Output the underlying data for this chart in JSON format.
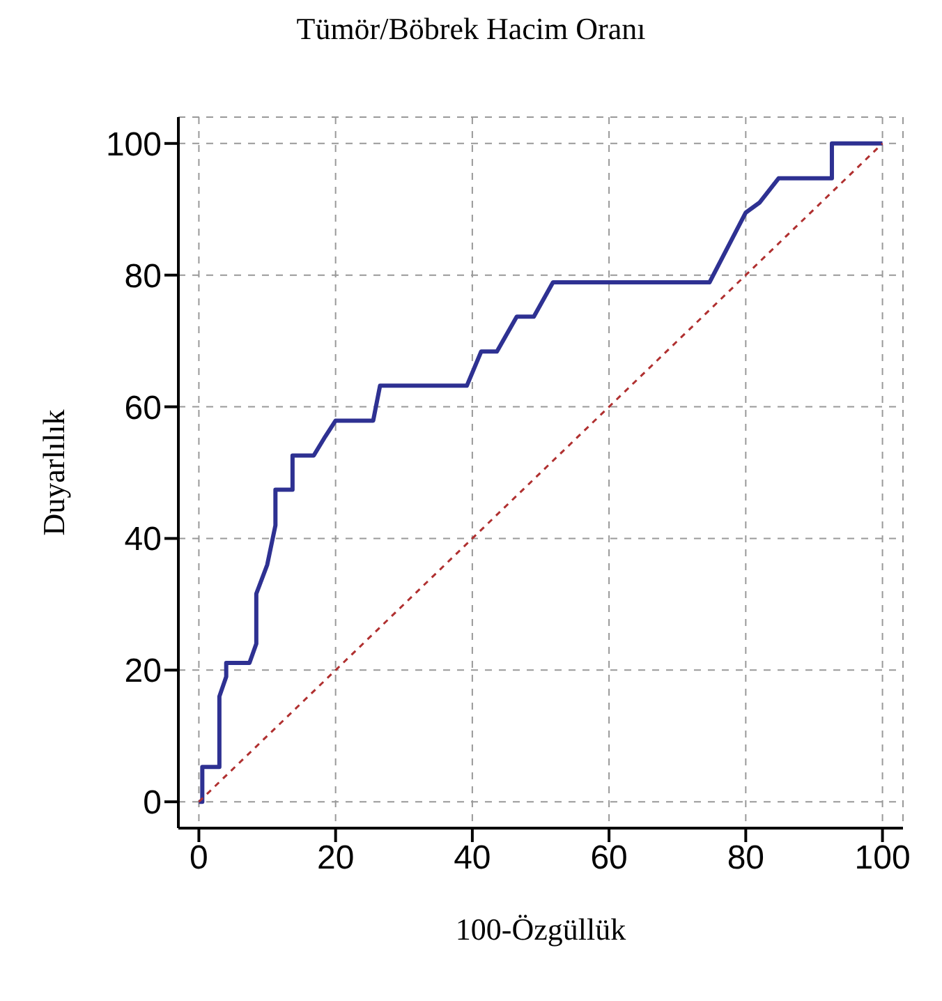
{
  "chart_data": {
    "type": "line",
    "title": "Tümör/Böbrek Hacim Oranı",
    "xlabel": "100-Özgüllük",
    "ylabel": "Duyarlılık",
    "xlim": [
      -3,
      103
    ],
    "ylim": [
      -4,
      104
    ],
    "xticks": [
      0,
      20,
      40,
      60,
      80,
      100
    ],
    "yticks": [
      0,
      20,
      40,
      60,
      80,
      100
    ],
    "grid": true,
    "legend": false,
    "marker": "none",
    "series": [
      {
        "color": "#2e3192",
        "line_style": "solid",
        "x": [
          0,
          0.5,
          0.5,
          3,
          3,
          4,
          4,
          7.4,
          8.4,
          8.4,
          10,
          11.2,
          11.2,
          13.7,
          13.7,
          16.8,
          18.5,
          20,
          25.5,
          26.5,
          39.2,
          41.3,
          43.6,
          46.5,
          49,
          51.8,
          74.7,
          80,
          82,
          84.8,
          92.6,
          92.6,
          100
        ],
        "values": [
          0,
          0,
          5.3,
          5.3,
          16,
          19,
          21.1,
          21.1,
          24,
          31.6,
          36,
          42,
          47.4,
          47.4,
          52.6,
          52.6,
          55.5,
          57.9,
          57.9,
          63.2,
          63.2,
          68.4,
          68.4,
          73.7,
          73.7,
          78.9,
          78.9,
          89.5,
          91,
          94.7,
          94.7,
          100,
          100
        ]
      },
      {
        "color": "#b03030",
        "line_style": "dashed",
        "x": [
          0,
          100
        ],
        "values": [
          0,
          100
        ]
      }
    ]
  }
}
